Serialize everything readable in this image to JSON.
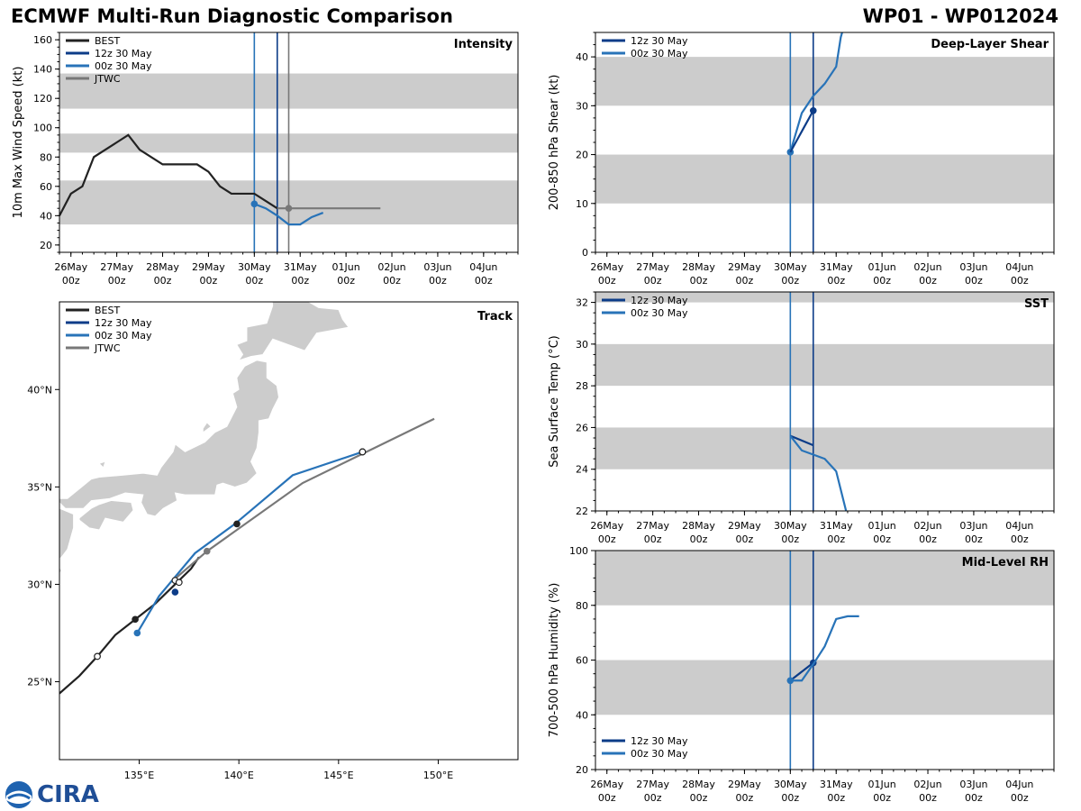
{
  "header": {
    "title_left": "ECMWF Multi-Run Diagnostic Comparison",
    "title_right": "WP01 - WP012024"
  },
  "logo": {
    "text": "CIRA"
  },
  "colors": {
    "best": "#222222",
    "run12": "#0c3c88",
    "run00": "#2873b8",
    "jtwc": "#787878",
    "band": "#cccccc",
    "land": "#cccccc"
  },
  "time_axis": {
    "day_labels": [
      "26May",
      "27May",
      "28May",
      "29May",
      "30May",
      "31May",
      "01Jun",
      "02Jun",
      "03Jun",
      "04Jun"
    ],
    "hour_label": "00z"
  },
  "chart_data": [
    {
      "id": "intensity",
      "type": "line",
      "title": "Intensity",
      "ylabel": "10m Max Wind Speed (kt)",
      "ylim": [
        15,
        165
      ],
      "yticks": [
        20,
        40,
        60,
        80,
        100,
        120,
        140,
        160
      ],
      "xlim_days": [
        -0.25,
        9.75
      ],
      "bands": [
        [
          34,
          64
        ],
        [
          83,
          96
        ],
        [
          113,
          137
        ]
      ],
      "vlines": [
        {
          "series": "00z 30 May",
          "day": 4.0
        },
        {
          "series": "12z 30 May",
          "day": 4.5
        },
        {
          "series": "JTWC",
          "day": 4.75
        }
      ],
      "legend": [
        "BEST",
        "12z 30 May",
        "00z 30 May",
        "JTWC"
      ],
      "series": [
        {
          "name": "BEST",
          "x": [
            -0.25,
            0.0,
            0.25,
            0.5,
            1.0,
            1.25,
            1.5,
            2.0,
            2.25,
            2.75,
            3.0,
            3.25,
            3.5,
            3.75,
            4.0,
            4.25,
            4.5
          ],
          "y": [
            40,
            55,
            60,
            80,
            90,
            95,
            85,
            75,
            75,
            75,
            70,
            60,
            55,
            55,
            55,
            50,
            45
          ]
        },
        {
          "name": "00z 30 May",
          "x": [
            4.0,
            4.25,
            4.5,
            4.75,
            5.0,
            5.25,
            5.5
          ],
          "y": [
            48,
            45,
            40,
            34,
            34,
            39,
            42
          ],
          "marker_day": 4.0
        },
        {
          "name": "JTWC",
          "x": [
            4.5,
            4.75,
            5.0,
            5.5,
            6.0,
            6.25,
            6.75
          ],
          "y": [
            45,
            45,
            45,
            45,
            45,
            45,
            45
          ],
          "marker_day": 4.75
        }
      ]
    },
    {
      "id": "shear",
      "type": "line",
      "title": "Deep-Layer Shear",
      "ylabel": "200-850 hPa Shear (kt)",
      "ylim": [
        0,
        45
      ],
      "yticks": [
        0,
        10,
        20,
        30,
        40
      ],
      "xlim_days": [
        -0.25,
        9.75
      ],
      "bands": [
        [
          10,
          20
        ],
        [
          30,
          40
        ]
      ],
      "vlines": [
        {
          "series": "00z 30 May",
          "day": 4.0
        },
        {
          "series": "12z 30 May",
          "day": 4.5
        }
      ],
      "legend": [
        "12z 30 May",
        "00z 30 May"
      ],
      "series": [
        {
          "name": "12z 30 May",
          "x": [
            4.5
          ],
          "y": [
            29
          ],
          "marker_day": 4.5
        },
        {
          "name": "00z 30 May",
          "x": [
            4.0,
            4.25,
            4.5,
            4.75,
            5.0,
            5.1,
            5.25
          ],
          "y": [
            20.5,
            28.5,
            32,
            34.5,
            38,
            44,
            49
          ],
          "marker_day": 4.0
        },
        {
          "name": "00z-to-12z",
          "x": [
            4.0,
            4.5
          ],
          "y": [
            20.5,
            29
          ]
        }
      ]
    },
    {
      "id": "sst",
      "type": "line",
      "title": "SST",
      "ylabel": "Sea Surface Temp (°C)",
      "ylim": [
        22,
        32.5
      ],
      "yticks": [
        22,
        24,
        26,
        28,
        30,
        32
      ],
      "xlim_days": [
        -0.25,
        9.75
      ],
      "bands": [
        [
          24,
          26
        ],
        [
          28,
          30
        ],
        [
          32,
          34
        ]
      ],
      "vlines": [
        {
          "series": "00z 30 May",
          "day": 4.0
        },
        {
          "series": "12z 30 May",
          "day": 4.5
        }
      ],
      "legend": [
        "12z 30 May",
        "00z 30 May"
      ],
      "series": [
        {
          "name": "12z 30 May",
          "x": [
            4.0,
            4.5
          ],
          "y": [
            25.6,
            25.15
          ]
        },
        {
          "name": "00z 30 May",
          "x": [
            4.0,
            4.25,
            4.5,
            4.75,
            5.0,
            5.25
          ],
          "y": [
            25.6,
            24.9,
            24.7,
            24.5,
            23.9,
            21.7
          ]
        }
      ]
    },
    {
      "id": "rh",
      "type": "line",
      "title": "Mid-Level RH",
      "ylabel": "700-500 hPa Humidity (%)",
      "ylim": [
        20,
        100
      ],
      "yticks": [
        20,
        40,
        60,
        80,
        100
      ],
      "xlim_days": [
        -0.25,
        9.75
      ],
      "bands": [
        [
          40,
          60
        ],
        [
          80,
          100
        ]
      ],
      "vlines": [
        {
          "series": "00z 30 May",
          "day": 4.0
        },
        {
          "series": "12z 30 May",
          "day": 4.5
        }
      ],
      "legend": [
        "12z 30 May",
        "00z 30 May"
      ],
      "series": [
        {
          "name": "12z 30 May",
          "x": [
            4.0,
            4.5
          ],
          "y": [
            52.5,
            59
          ],
          "marker_day": 4.5
        },
        {
          "name": "00z 30 May",
          "x": [
            4.0,
            4.25,
            4.5,
            4.75,
            5.0,
            5.25,
            5.5
          ],
          "y": [
            52.5,
            52.5,
            58.5,
            65,
            75,
            76,
            76
          ],
          "marker_day": 4.0
        }
      ]
    },
    {
      "id": "track",
      "type": "line",
      "title": "Track",
      "xlim_lon": [
        131,
        154
      ],
      "ylim_lat": [
        21,
        44.5
      ],
      "lon_ticks": [
        135,
        140,
        145,
        150
      ],
      "lon_tick_labels": [
        "135°E",
        "140°E",
        "145°E",
        "150°E"
      ],
      "lat_ticks": [
        25,
        30,
        35,
        40
      ],
      "lat_tick_labels": [
        "25°N",
        "30°N",
        "35°N",
        "40°N"
      ],
      "legend": [
        "BEST",
        "12z 30 May",
        "00z 30 May",
        "JTWC"
      ],
      "series": [
        {
          "name": "BEST",
          "lon": [
            131.0,
            132.0,
            132.9,
            133.8,
            134.8,
            135.8,
            136.8,
            137.6,
            138.0
          ],
          "lat": [
            24.4,
            25.3,
            26.3,
            27.4,
            28.2,
            29.0,
            30.0,
            30.8,
            31.4
          ],
          "open_markers": [
            [
              132.9,
              26.3
            ],
            [
              136.8,
              30.2
            ],
            [
              137.0,
              30.1
            ]
          ],
          "filled_markers": [
            [
              134.8,
              28.2
            ]
          ]
        },
        {
          "name": "00z 30 May",
          "lon": [
            134.9,
            136.0,
            137.8,
            139.8,
            142.7,
            146.2
          ],
          "lat": [
            27.5,
            29.4,
            31.6,
            33.1,
            35.6,
            36.8
          ],
          "filled_markers": [
            [
              134.9,
              27.5
            ]
          ],
          "open_markers": [
            [
              146.2,
              36.8
            ]
          ]
        },
        {
          "name": "12z 30 May",
          "lon": [
            136.8
          ],
          "lat": [
            29.6
          ],
          "filled_markers": [
            [
              136.8,
              29.6
            ]
          ]
        },
        {
          "name": "JTWC",
          "lon": [
            136.7,
            138.4,
            143.2,
            149.8
          ],
          "lat": [
            30.2,
            31.7,
            35.2,
            38.5
          ],
          "filled_markers": [
            [
              138.4,
              31.7
            ]
          ],
          "open_markers": [
            [
              146.2,
              36.8
            ]
          ]
        },
        {
          "name": "BEST-mid",
          "lon": [
            139.9
          ],
          "lat": [
            33.1
          ],
          "filled_markers": [
            [
              139.9,
              33.1
            ]
          ]
        }
      ]
    }
  ]
}
